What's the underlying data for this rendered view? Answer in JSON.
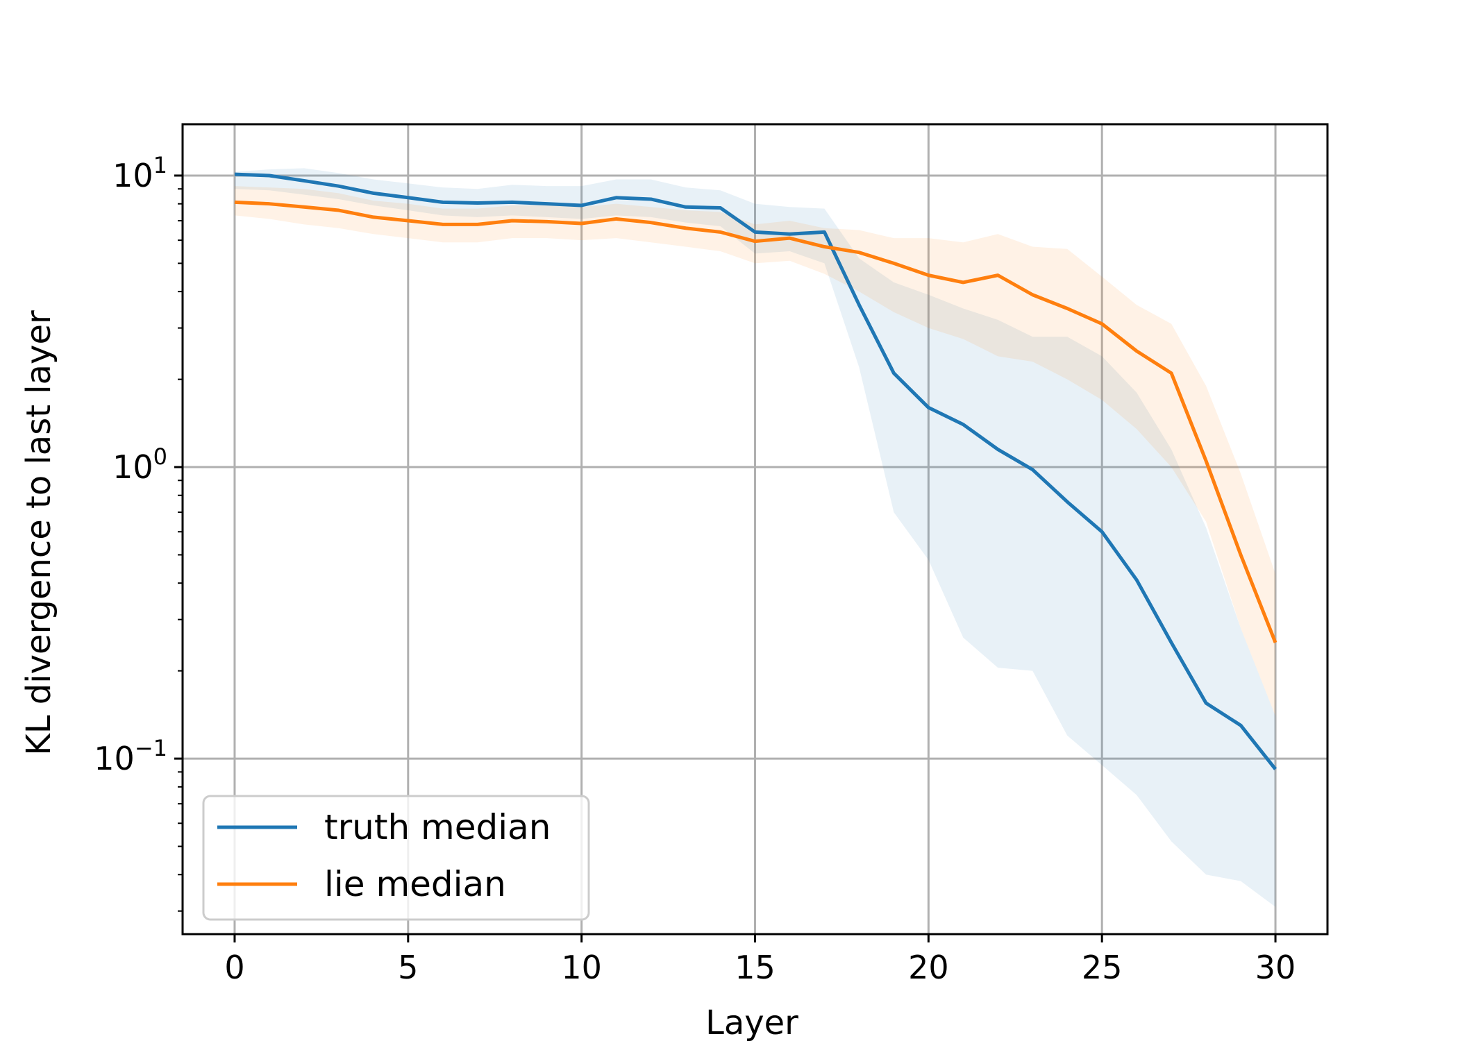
{
  "chart_data": {
    "type": "line",
    "title": "",
    "xlabel": "Layer",
    "ylabel": "KL divergence to last layer",
    "xlim": [
      -1.5,
      31.5
    ],
    "ylim": [
      0.025,
      15
    ],
    "yscale": "log",
    "grid": true,
    "legend_position": "lower-left",
    "x_ticks": [
      0,
      5,
      10,
      15,
      20,
      25,
      30
    ],
    "y_ticks": [
      {
        "value": 10,
        "base": "10",
        "exp": "1"
      },
      {
        "value": 1,
        "base": "10",
        "exp": "0"
      },
      {
        "value": 0.1,
        "base": "10",
        "exp": "−1"
      }
    ],
    "x": [
      0,
      1,
      2,
      3,
      4,
      5,
      6,
      7,
      8,
      9,
      10,
      11,
      12,
      13,
      14,
      15,
      16,
      17,
      18,
      19,
      20,
      21,
      22,
      23,
      24,
      25,
      26,
      27,
      28,
      29,
      30
    ],
    "series": [
      {
        "name": "truth median",
        "color": "#1f77b4",
        "values": [
          10.1,
          10.0,
          9.6,
          9.2,
          8.7,
          8.4,
          8.1,
          8.05,
          8.1,
          8.0,
          7.9,
          8.4,
          8.3,
          7.8,
          7.75,
          6.4,
          6.3,
          6.4,
          3.6,
          2.1,
          1.6,
          1.4,
          1.15,
          0.98,
          0.76,
          0.6,
          0.41,
          0.25,
          0.155,
          0.13,
          0.092
        ],
        "band_upper": [
          10.3,
          10.5,
          10.6,
          10.2,
          9.7,
          9.4,
          9.1,
          9.0,
          9.3,
          9.2,
          9.2,
          9.7,
          9.7,
          9.1,
          8.9,
          8.0,
          7.8,
          7.7,
          5.2,
          4.3,
          3.9,
          3.5,
          3.2,
          2.8,
          2.8,
          2.4,
          1.8,
          1.15,
          0.62,
          0.28,
          0.14
        ],
        "band_lower": [
          9.0,
          8.9,
          8.6,
          8.3,
          7.9,
          7.6,
          7.3,
          7.2,
          7.3,
          7.2,
          7.1,
          7.3,
          7.2,
          6.9,
          6.7,
          5.4,
          5.5,
          5.0,
          2.2,
          0.7,
          0.48,
          0.26,
          0.205,
          0.2,
          0.12,
          0.095,
          0.075,
          0.052,
          0.04,
          0.038,
          0.031
        ]
      },
      {
        "name": "lie median",
        "color": "#ff7f0e",
        "values": [
          8.1,
          8.0,
          7.8,
          7.6,
          7.2,
          7.0,
          6.8,
          6.8,
          7.0,
          6.95,
          6.85,
          7.1,
          6.9,
          6.6,
          6.4,
          5.95,
          6.1,
          5.7,
          5.45,
          5.0,
          4.55,
          4.3,
          4.55,
          3.9,
          3.5,
          3.1,
          2.5,
          2.1,
          1.05,
          0.5,
          0.25
        ],
        "band_upper": [
          9.2,
          9.1,
          9.0,
          8.7,
          8.2,
          8.0,
          7.7,
          7.7,
          7.9,
          7.9,
          7.8,
          8.0,
          7.8,
          7.6,
          7.5,
          6.8,
          7.0,
          6.6,
          6.5,
          6.1,
          6.1,
          5.9,
          6.3,
          5.7,
          5.6,
          4.5,
          3.6,
          3.1,
          1.9,
          0.95,
          0.43
        ],
        "band_lower": [
          7.3,
          7.1,
          6.8,
          6.6,
          6.3,
          6.1,
          5.9,
          5.9,
          6.1,
          6.1,
          6.0,
          6.1,
          5.9,
          5.7,
          5.5,
          5.0,
          5.1,
          4.6,
          4.0,
          3.4,
          3.0,
          2.75,
          2.4,
          2.3,
          2.0,
          1.7,
          1.35,
          1.0,
          0.65,
          0.28,
          0.14
        ]
      }
    ]
  }
}
